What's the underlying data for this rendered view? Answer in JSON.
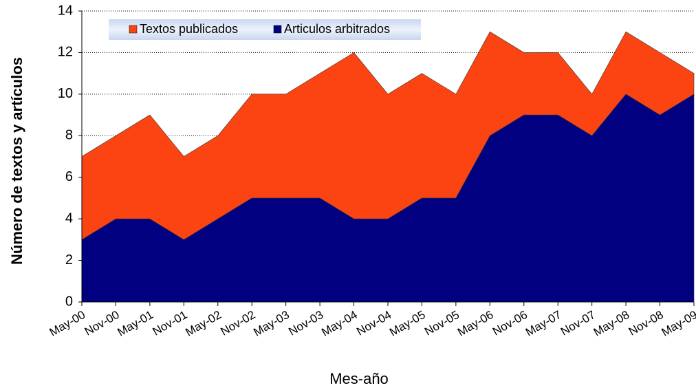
{
  "chart_data": {
    "type": "stacked-area",
    "xlabel": "Mes-año",
    "ylabel": "Número de textos y artículos",
    "categories": [
      "May-00",
      "Nov-00",
      "May-01",
      "Nov-01",
      "May-02",
      "Nov-02",
      "May-03",
      "Nov-03",
      "May-04",
      "Nov-04",
      "May-05",
      "Nov-05",
      "May-06",
      "Nov-06",
      "May-07",
      "Nov-07",
      "May-08",
      "Nov-08",
      "May-09"
    ],
    "series": [
      {
        "name": "Textos publicados",
        "color": "#fc4412",
        "values": [
          4,
          4,
          5,
          4,
          4,
          5,
          5,
          6,
          8,
          6,
          6,
          5,
          5,
          3,
          3,
          2,
          3,
          3,
          1
        ]
      },
      {
        "name": "Articulos arbitrados",
        "color": "#000080",
        "values": [
          3,
          4,
          4,
          3,
          4,
          5,
          5,
          5,
          4,
          4,
          5,
          5,
          8,
          9,
          9,
          8,
          10,
          9,
          10
        ]
      }
    ],
    "stacking": "last-series-at-bottom",
    "ylim": [
      0,
      14
    ],
    "yticks": [
      0,
      2,
      4,
      6,
      8,
      10,
      12,
      14
    ],
    "grid": true,
    "legend": "top"
  }
}
